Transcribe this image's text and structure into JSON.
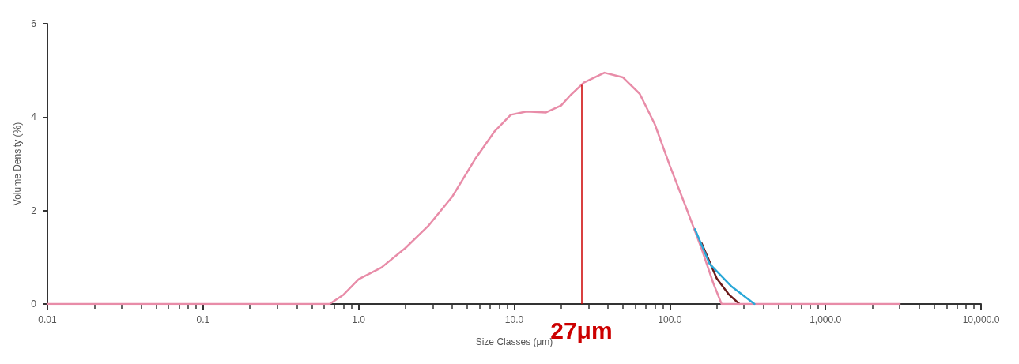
{
  "chart_data": {
    "type": "line",
    "xlabel": "Size Classes (μm)",
    "ylabel": "Volume Density (%)",
    "log": "x",
    "grid": false,
    "marker": "none",
    "xlim": [
      0.01,
      10000
    ],
    "xticks": [
      {
        "value": 0.01,
        "label": "0.01"
      },
      {
        "value": 0.1,
        "label": "0.1"
      },
      {
        "value": 1,
        "label": "1.0"
      },
      {
        "value": 10,
        "label": "10.0"
      },
      {
        "value": 100,
        "label": "100.0"
      },
      {
        "value": 1000,
        "label": "1,000.0"
      },
      {
        "value": 10000,
        "label": "10,000.0"
      }
    ],
    "ylim": [
      0,
      6
    ],
    "yticks": [
      0,
      2,
      4,
      6
    ],
    "series": [
      {
        "color": "#e88ca8",
        "x": [
          0.01,
          0.65,
          0.8,
          1.0,
          1.4,
          2.0,
          2.8,
          4.0,
          5.6,
          7.5,
          9.5,
          12,
          16,
          20,
          23,
          28,
          38,
          50,
          64,
          80,
          100,
          127,
          160,
          190,
          215,
          3000
        ],
        "values": [
          0,
          0,
          0.2,
          0.53,
          0.78,
          1.2,
          1.67,
          2.3,
          3.1,
          3.7,
          4.05,
          4.12,
          4.1,
          4.25,
          4.47,
          4.74,
          4.95,
          4.85,
          4.5,
          3.85,
          2.96,
          2.07,
          1.18,
          0.45,
          0,
          0
        ]
      },
      {
        "color": "#6b1a1a",
        "x": [
          160,
          200,
          240,
          280
        ],
        "values": [
          1.3,
          0.55,
          0.2,
          0
        ]
      },
      {
        "color": "#2aa8d8",
        "x": [
          145,
          180,
          250,
          350
        ],
        "values": [
          1.6,
          0.86,
          0.37,
          0
        ]
      }
    ],
    "ref_lines": [
      {
        "axis": "x",
        "value": 27,
        "label": "27μm",
        "color": "#cc0000"
      }
    ]
  }
}
